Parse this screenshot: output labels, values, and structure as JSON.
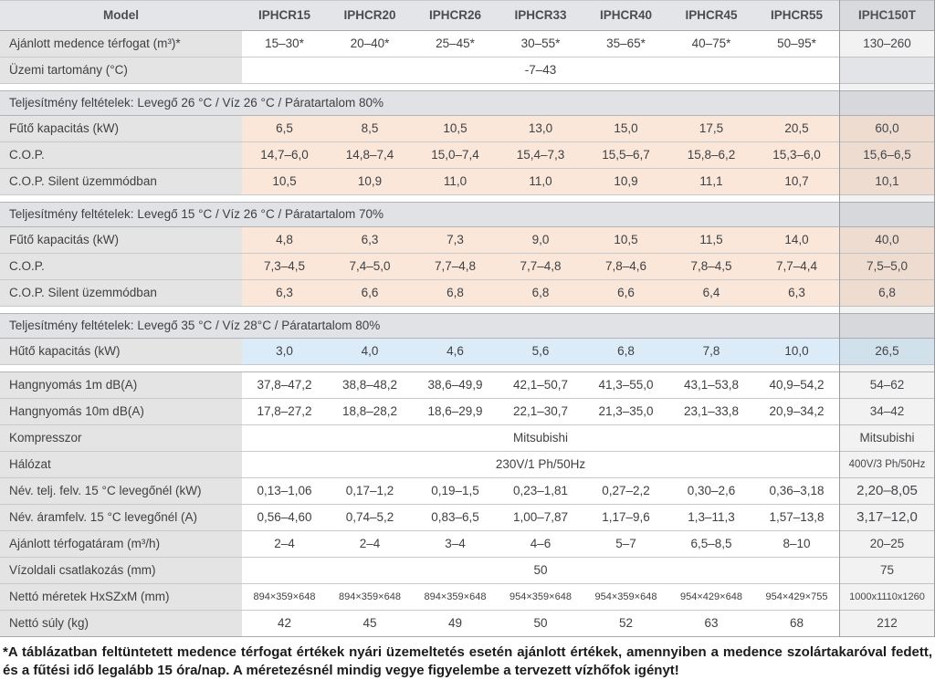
{
  "colors": {
    "header_bg": "#e3e5e8",
    "label_bg": "#e4e4e4",
    "band_bg": "#e1e2e5",
    "heating_row_bg": "#fbe7da",
    "cooling_row_bg": "#dbecf8",
    "last_column_border": "#97999d"
  },
  "table": {
    "header": {
      "model_label": "Model",
      "models": [
        "IPHCR15",
        "IPHCR20",
        "IPHCR26",
        "IPHCR33",
        "IPHCR40",
        "IPHCR45",
        "IPHCR55",
        "IPHC150T"
      ]
    },
    "rows": [
      {
        "type": "data",
        "key": "ajanlott-medence-terfogat",
        "label": "Ajánlott medence térfogat (m³)*",
        "tint": "white",
        "values": [
          "15–30*",
          "20–40*",
          "25–45*",
          "30–55*",
          "35–65*",
          "40–75*",
          "50–95*",
          "130–260"
        ]
      },
      {
        "type": "span",
        "key": "uzemi-tartomany",
        "label": "Üzemi tartomány (°C)",
        "span_value": "-7–43",
        "last_value": "",
        "last_tint": "empty"
      },
      {
        "type": "gap"
      },
      {
        "type": "band",
        "key": "section-26-26-80",
        "text": "Teljesítmény feltételek: Levegő 26 °C / Víz 26 °C / Páratartalom 80%"
      },
      {
        "type": "data",
        "key": "futo-kapacitas-1",
        "label": "Fűtő kapacitás (kW)",
        "tint": "peach",
        "values": [
          "6,5",
          "8,5",
          "10,5",
          "13,0",
          "15,0",
          "17,5",
          "20,5",
          "60,0"
        ]
      },
      {
        "type": "data",
        "key": "cop-1",
        "label": "C.O.P.",
        "tint": "peach",
        "values": [
          "14,7–6,0",
          "14,8–7,4",
          "15,0–7,4",
          "15,4–7,3",
          "15,5–6,7",
          "15,8–6,2",
          "15,3–6,0",
          "15,6–6,5"
        ]
      },
      {
        "type": "data",
        "key": "cop-silent-1",
        "label": "C.O.P. Silent üzemmódban",
        "tint": "peach",
        "values": [
          "10,5",
          "10,9",
          "11,0",
          "11,0",
          "10,9",
          "11,1",
          "10,7",
          "10,1"
        ]
      },
      {
        "type": "gap"
      },
      {
        "type": "band",
        "key": "section-15-26-70",
        "text": "Teljesítmény feltételek: Levegő 15 °C / Víz 26 °C / Páratartalom 70%"
      },
      {
        "type": "data",
        "key": "futo-kapacitas-2",
        "label": "Fűtő kapacitás (kW)",
        "tint": "peach",
        "values": [
          "4,8",
          "6,3",
          "7,3",
          "9,0",
          "10,5",
          "11,5",
          "14,0",
          "40,0"
        ]
      },
      {
        "type": "data",
        "key": "cop-2",
        "label": "C.O.P.",
        "tint": "peach",
        "values": [
          "7,3–4,5",
          "7,4–5,0",
          "7,7–4,8",
          "7,7–4,8",
          "7,8–4,6",
          "7,8–4,5",
          "7,7–4,4",
          "7,5–5,0"
        ]
      },
      {
        "type": "data",
        "key": "cop-silent-2",
        "label": "C.O.P. Silent üzemmódban",
        "tint": "peach",
        "values": [
          "6,3",
          "6,6",
          "6,8",
          "6,8",
          "6,6",
          "6,4",
          "6,3",
          "6,8"
        ]
      },
      {
        "type": "gap"
      },
      {
        "type": "band",
        "key": "section-35-28-80",
        "text": "Teljesítmény feltételek: Levegő 35 °C / Víz 28°C / Páratartalom 80%"
      },
      {
        "type": "data",
        "key": "huto-kapacitas",
        "label": "Hűtő kapacitás (kW)",
        "tint": "blue",
        "values": [
          "3,0",
          "4,0",
          "4,6",
          "5,6",
          "6,8",
          "7,8",
          "10,0",
          "26,5"
        ]
      },
      {
        "type": "gap"
      },
      {
        "type": "data",
        "key": "hangnyomas-1m",
        "label": "Hangnyomás 1m dB(A)",
        "tint": "white",
        "border_top": true,
        "values": [
          "37,8–47,2",
          "38,8–48,2",
          "38,6–49,9",
          "42,1–50,7",
          "41,3–55,0",
          "43,1–53,8",
          "40,9–54,2",
          "54–62"
        ]
      },
      {
        "type": "data",
        "key": "hangnyomas-10m",
        "label": "Hangnyomás 10m dB(A)",
        "tint": "white",
        "values": [
          "17,8–27,2",
          "18,8–28,2",
          "18,6–29,9",
          "22,1–30,7",
          "21,3–35,0",
          "23,1–33,8",
          "20,9–34,2",
          "34–42"
        ]
      },
      {
        "type": "span",
        "key": "kompresszor",
        "label": "Kompresszor",
        "span_value": "Mitsubishi",
        "last_value": "Mitsubishi",
        "last_tint": "white"
      },
      {
        "type": "span",
        "key": "halozat",
        "label": "Hálózat",
        "span_value": "230V/1 Ph/50Hz",
        "last_value": "400V/3 Ph/50Hz",
        "last_tint": "white",
        "last_small": true
      },
      {
        "type": "data",
        "key": "nev-telj-felv",
        "label": "Név. telj. felv. 15 °C levegőnél (kW)",
        "tint": "white",
        "last_big": true,
        "values": [
          "0,13–1,06",
          "0,17–1,2",
          "0,19–1,5",
          "0,23–1,81",
          "0,27–2,2",
          "0,30–2,6",
          "0,36–3,18",
          "2,20–8,05"
        ]
      },
      {
        "type": "data",
        "key": "nev-aramfelv",
        "label": "Név. áramfelv. 15 °C levegőnél (A)",
        "tint": "white",
        "last_big": true,
        "values": [
          "0,56–4,60",
          "0,74–5,2",
          "0,83–6,5",
          "1,00–7,87",
          "1,17–9,6",
          "1,3–11,3",
          "1,57–13,8",
          "3,17–12,0"
        ]
      },
      {
        "type": "data",
        "key": "ajanlott-terfogataram",
        "label": "Ajánlott térfogatáram (m³/h)",
        "tint": "white",
        "values": [
          "2–4",
          "2–4",
          "3–4",
          "4–6",
          "5–7",
          "6,5–8,5",
          "8–10",
          "20–25"
        ]
      },
      {
        "type": "span",
        "key": "vizoldali-csatlakozas",
        "label": "Vízoldali csatlakozás (mm)",
        "span_value": "50",
        "last_value": "75",
        "last_tint": "white"
      },
      {
        "type": "data",
        "key": "netto-meretek",
        "label": "Nettó méretek HxSZxM (mm)",
        "tint": "white",
        "small_values": true,
        "values": [
          "894×359×648",
          "894×359×648",
          "894×359×648",
          "954×359×648",
          "954×359×648",
          "954×429×648",
          "954×429×755",
          "1000x1110x1260"
        ]
      },
      {
        "type": "data",
        "key": "netto-suly",
        "label": "Nettó súly (kg)",
        "tint": "white",
        "values": [
          "42",
          "45",
          "49",
          "50",
          "52",
          "63",
          "68",
          "212"
        ]
      }
    ]
  },
  "footnote": "*A táblázatban feltüntetett medence térfogat értékek nyári üzemeltetés esetén ajánlott értékek, amennyiben a medence szolártakaróval fedett, és a fűtési idő legalább 15 óra/nap. A méretezésnél mindig vegye figyelembe a tervezett vízhőfok igényt!"
}
